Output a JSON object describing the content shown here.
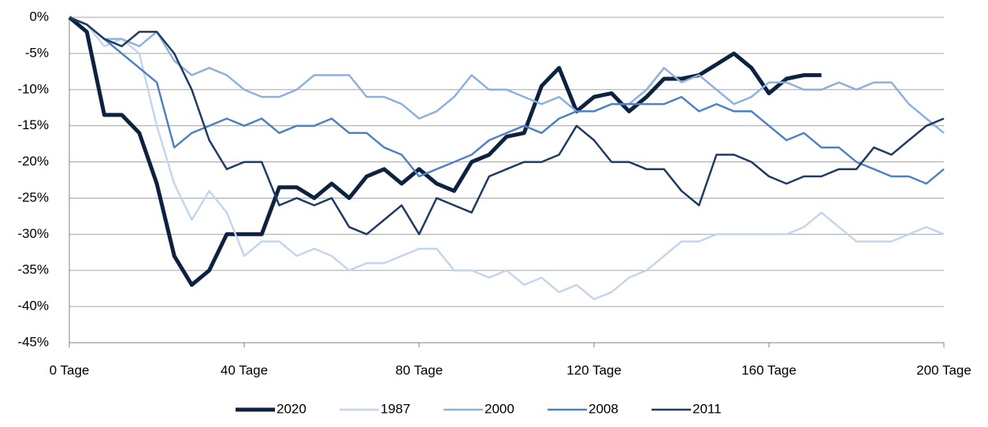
{
  "chart_data": {
    "type": "line",
    "x": [
      0,
      4,
      8,
      12,
      16,
      20,
      24,
      28,
      32,
      36,
      40,
      44,
      48,
      52,
      56,
      60,
      64,
      68,
      72,
      76,
      80,
      84,
      88,
      92,
      96,
      100,
      104,
      108,
      112,
      116,
      120,
      124,
      128,
      132,
      136,
      140,
      144,
      148,
      152,
      156,
      160,
      164,
      168,
      172,
      176,
      180,
      184,
      188,
      192,
      196,
      200
    ],
    "xlim": [
      0,
      200
    ],
    "xticks": [
      {
        "value": 0,
        "label": "0 Tage"
      },
      {
        "value": 40,
        "label": "40 Tage"
      },
      {
        "value": 80,
        "label": "80 Tage"
      },
      {
        "value": 120,
        "label": "120 Tage"
      },
      {
        "value": 160,
        "label": "160 Tage"
      },
      {
        "value": 200,
        "label": "200 Tage"
      }
    ],
    "ylim": [
      -45,
      0
    ],
    "yticks": [
      {
        "value": 0,
        "label": "0%"
      },
      {
        "value": -5,
        "label": "-5%"
      },
      {
        "value": -10,
        "label": "-10%"
      },
      {
        "value": -15,
        "label": "-15%"
      },
      {
        "value": -20,
        "label": "-20%"
      },
      {
        "value": -25,
        "label": "-25%"
      },
      {
        "value": -30,
        "label": "-30%"
      },
      {
        "value": -35,
        "label": "-35%"
      },
      {
        "value": -40,
        "label": "-40%"
      },
      {
        "value": -45,
        "label": "-45%"
      }
    ],
    "grid": true,
    "legend": "bottom",
    "series": [
      {
        "name": "2020",
        "color": "#0d2240",
        "values": [
          0,
          -2,
          -13.5,
          -13.5,
          -16,
          -23,
          -33,
          -37,
          -35,
          -30,
          -30,
          -30,
          -23.5,
          -23.5,
          -25,
          -23,
          -25,
          -22,
          -21,
          -23,
          -21,
          -23,
          -24,
          -20,
          -19,
          -16.5,
          -16,
          -9.5,
          -7,
          -13,
          -11,
          -10.5,
          -13,
          -11,
          -8.5,
          -8.5,
          -8,
          -6.5,
          -5,
          -7,
          -10.5,
          -8.5,
          -8,
          -8,
          null,
          null,
          null,
          null,
          null,
          null,
          null
        ]
      },
      {
        "name": "1987",
        "color": "#c5d6ea",
        "values": [
          0,
          -1,
          -4,
          -3,
          -5,
          -15,
          -23,
          -28,
          -24,
          -27,
          -33,
          -31,
          -31,
          -33,
          -32,
          -33,
          -35,
          -34,
          -34,
          -33,
          -32,
          -32,
          -35,
          -35,
          -36,
          -35,
          -37,
          -36,
          -38,
          -37,
          -39,
          -38,
          -36,
          -35,
          -33,
          -31,
          -31,
          -30,
          -30,
          -30,
          -30,
          -30,
          -29,
          -27,
          -29,
          -31,
          -31,
          -31,
          -30,
          -29,
          -30
        ]
      },
      {
        "name": "2000",
        "color": "#8eb1dc",
        "values": [
          0,
          -1,
          -3,
          -3,
          -4,
          -2,
          -6,
          -8,
          -7,
          -8,
          -10,
          -11,
          -11,
          -10,
          -8,
          -8,
          -8,
          -11,
          -11,
          -12,
          -14,
          -13,
          -11,
          -8,
          -10,
          -10,
          -11,
          -12,
          -11,
          -13,
          -13,
          -12,
          -12,
          -10,
          -7,
          -9,
          -8,
          -10,
          -12,
          -11,
          -9,
          -9,
          -10,
          -10,
          -9,
          -10,
          -9,
          -9,
          -12,
          -14,
          -16
        ]
      },
      {
        "name": "2008",
        "color": "#4f81c4",
        "values": [
          0,
          -1,
          -3,
          -5,
          -7,
          -9,
          -18,
          -16,
          -15,
          -14,
          -15,
          -14,
          -16,
          -15,
          -15,
          -14,
          -16,
          -16,
          -18,
          -19,
          -22,
          -21,
          -20,
          -19,
          -17,
          -16,
          -15,
          -16,
          -14,
          -13,
          -13,
          -12,
          -12,
          -12,
          -12,
          -11,
          -13,
          -12,
          -13,
          -13,
          -15,
          -17,
          -16,
          -18,
          -18,
          -20,
          -21,
          -22,
          -22,
          -23,
          -21
        ]
      },
      {
        "name": "2011",
        "color": "#1f3a63",
        "values": [
          0,
          -1,
          -3,
          -4,
          -2,
          -2,
          -5,
          -10,
          -17,
          -21,
          -20,
          -20,
          -26,
          -25,
          -26,
          -25,
          -29,
          -30,
          -28,
          -26,
          -30,
          -25,
          -26,
          -27,
          -22,
          -21,
          -20,
          -20,
          -19,
          -15,
          -17,
          -20,
          -20,
          -21,
          -21,
          -24,
          -26,
          -19,
          -19,
          -20,
          -22,
          -23,
          -22,
          -22,
          -21,
          -21,
          -18,
          -19,
          -17,
          -15,
          -14
        ]
      }
    ]
  }
}
